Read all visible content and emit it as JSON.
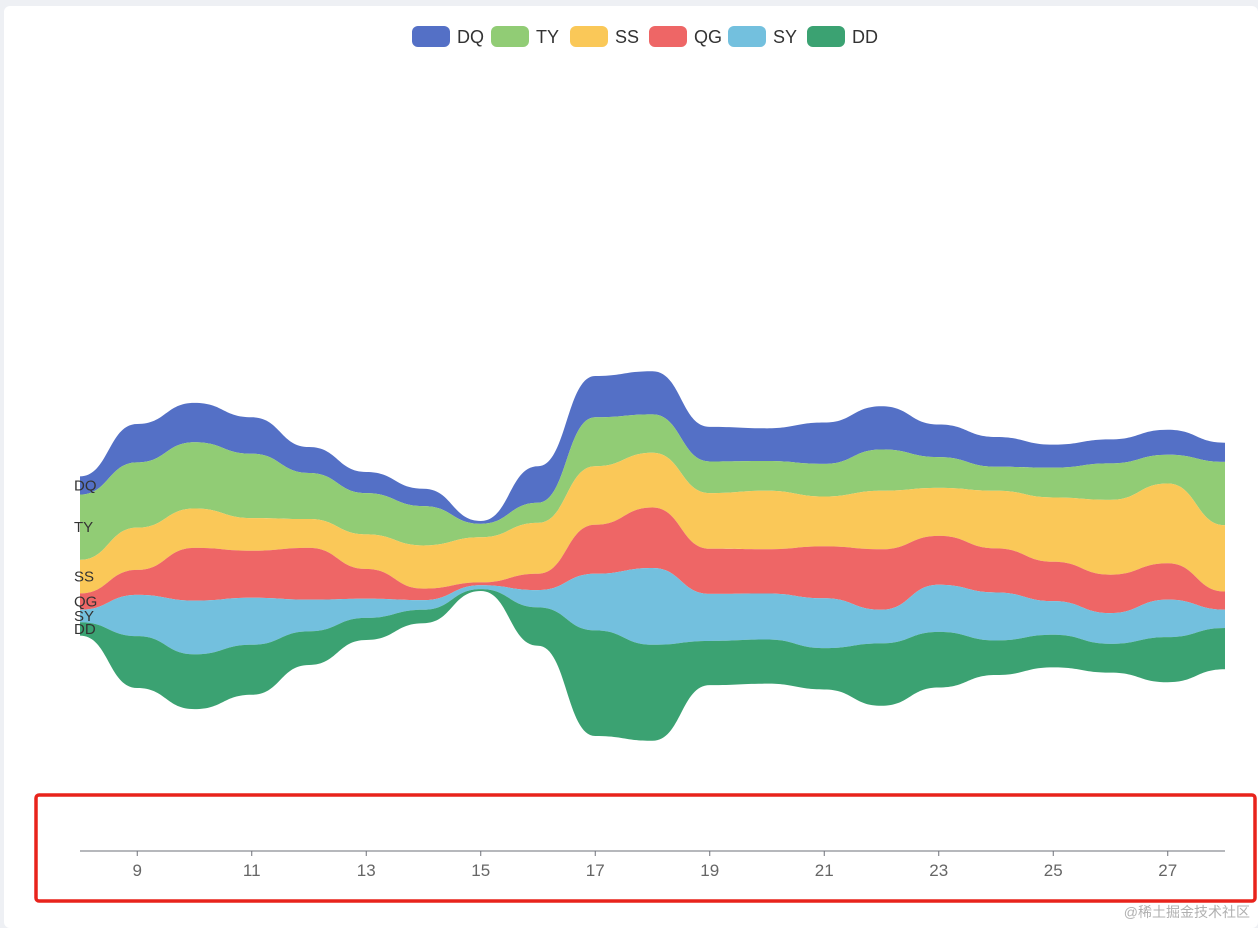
{
  "chart_data": {
    "type": "streamgraph",
    "title": "",
    "xlabel": "",
    "ylabel": "",
    "x": [
      8,
      9,
      10,
      11,
      12,
      13,
      14,
      15,
      16,
      17,
      18,
      19,
      20,
      21,
      22,
      23,
      24,
      25,
      26,
      27,
      28
    ],
    "x_ticks": [
      9,
      11,
      13,
      15,
      17,
      19,
      21,
      23,
      25,
      27
    ],
    "xlim": [
      8,
      28
    ],
    "legend_position": "top-center",
    "series": [
      {
        "name": "DQ",
        "color": "#5470c6",
        "values": [
          1.9,
          4.0,
          4.1,
          3.8,
          2.7,
          2.2,
          1.8,
          0.3,
          3.8,
          4.3,
          4.5,
          3.6,
          3.4,
          4.3,
          4.5,
          3.4,
          3.1,
          2.4,
          2.5,
          2.6,
          2.0
        ]
      },
      {
        "name": "TY",
        "color": "#91cc75",
        "values": [
          6.8,
          6.8,
          6.9,
          6.7,
          4.8,
          4.3,
          4.1,
          1.4,
          2.1,
          5.1,
          4.0,
          3.3,
          3.1,
          3.4,
          4.3,
          3.2,
          2.5,
          3.1,
          3.8,
          3.0,
          6.6
        ]
      },
      {
        "name": "SS",
        "color": "#fac858",
        "values": [
          3.5,
          4.4,
          4.1,
          3.4,
          3.0,
          3.6,
          4.5,
          4.7,
          5.3,
          6.1,
          5.7,
          5.8,
          6.1,
          5.2,
          6.1,
          5.0,
          6.0,
          6.7,
          7.8,
          8.3,
          6.9
        ]
      },
      {
        "name": "QG",
        "color": "#ee6666",
        "values": [
          1.7,
          2.6,
          5.5,
          4.9,
          5.4,
          3.1,
          1.2,
          0.3,
          1.7,
          5.1,
          6.3,
          4.7,
          4.6,
          5.4,
          6.3,
          5.1,
          4.6,
          4.1,
          4.0,
          3.8,
          1.9
        ]
      },
      {
        "name": "SY",
        "color": "#73c0de",
        "values": [
          1.3,
          4.3,
          5.6,
          4.9,
          3.3,
          2.0,
          1.0,
          0.4,
          1.8,
          5.9,
          8.0,
          4.9,
          4.8,
          5.2,
          3.5,
          4.9,
          5.0,
          3.5,
          3.2,
          3.9,
          1.9
        ]
      },
      {
        "name": "DD",
        "color": "#3ba272",
        "values": [
          1.4,
          5.4,
          5.7,
          5.2,
          3.5,
          2.3,
          1.4,
          0.2,
          4.0,
          11.0,
          10.0,
          4.6,
          4.6,
          4.3,
          6.5,
          5.8,
          3.6,
          3.4,
          3.0,
          4.7,
          4.3
        ]
      }
    ]
  },
  "watermark": "@稀土掘金技术社区",
  "annotation": {
    "type": "highlight-box",
    "color": "#e8231c",
    "target": "x-axis"
  }
}
